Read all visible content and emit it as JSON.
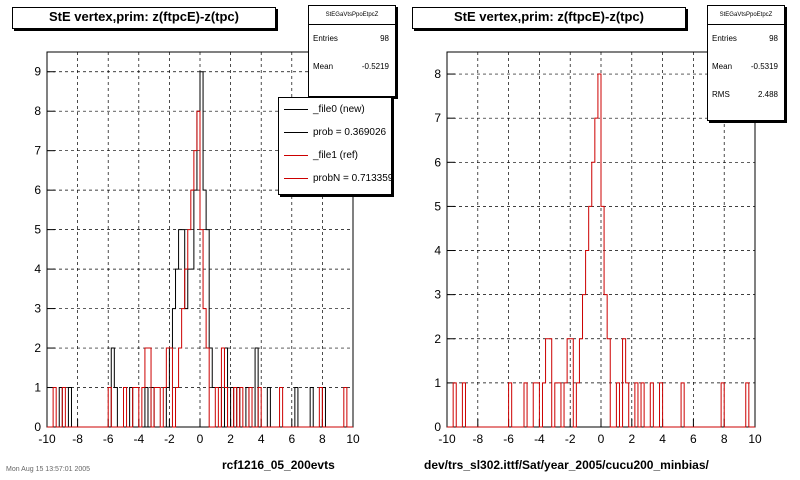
{
  "left_panel": {
    "title": "StE  vertex,prim: z(ftpcE)-z(tpc)",
    "stats": {
      "header": "StEGaVtsPpoEtpcZ",
      "entries_label": "Entries",
      "entries_value": "98",
      "mean_label": "Mean",
      "mean_value": "-0.5219"
    },
    "legend": {
      "items": [
        {
          "label": "_file0 (new)",
          "color": "#000000"
        },
        {
          "label": "prob = 0.369026",
          "color": "#000000"
        },
        {
          "label": "_file1 (ref)",
          "color": "#cc0000"
        },
        {
          "label": "probN = 0.713359",
          "color": "#cc0000"
        }
      ]
    },
    "caption": "rcf1216_05_200evts"
  },
  "right_panel": {
    "title": "StE  vertex,prim: z(ftpcE)-z(tpc)",
    "stats": {
      "header": "StEGaVtsPpoEtpcZ",
      "entries_label": "Entries",
      "entries_value": "98",
      "mean_label": "Mean",
      "mean_value": "-0.5319",
      "rms_label": "RMS",
      "rms_value": "2.488"
    },
    "caption": "dev/trs_sl302.ittf/Sat/year_2005/cucu200_minbias/"
  },
  "footnote": "Mon Aug 15 13:57:01 2005",
  "colors": {
    "new": "#000000",
    "ref": "#cc0000",
    "grid": "#000000"
  },
  "chart_data": [
    {
      "type": "histogram",
      "title": "StE  vertex,prim: z(ftpcE)-z(tpc)",
      "xlim": [
        -10,
        10
      ],
      "ylim": [
        0,
        9.5
      ],
      "x_ticks": [
        -10,
        -8,
        -6,
        -4,
        -2,
        0,
        2,
        4,
        6,
        8,
        10
      ],
      "y_ticks": [
        0,
        1,
        2,
        3,
        4,
        5,
        6,
        7,
        8,
        9
      ],
      "grid": true,
      "legend_position": "top-right",
      "bin_width": 0.2,
      "series": [
        {
          "name": "_file0 (new)",
          "color": "#000000",
          "bins": [
            [
              -9.2,
              1
            ],
            [
              -8.6,
              1
            ],
            [
              -5.8,
              2
            ],
            [
              -5.6,
              1
            ],
            [
              -4.6,
              1
            ],
            [
              -3.6,
              1
            ],
            [
              -3.2,
              1
            ],
            [
              -2.2,
              1
            ],
            [
              -2.0,
              2
            ],
            [
              -1.8,
              3
            ],
            [
              -1.6,
              4
            ],
            [
              -1.4,
              5
            ],
            [
              -1.2,
              5
            ],
            [
              -1.0,
              3
            ],
            [
              -0.8,
              4
            ],
            [
              -0.6,
              4
            ],
            [
              -0.4,
              6
            ],
            [
              -0.2,
              8
            ],
            [
              0.0,
              9
            ],
            [
              0.2,
              6
            ],
            [
              0.4,
              5
            ],
            [
              0.6,
              2
            ],
            [
              0.8,
              1
            ],
            [
              1.0,
              1
            ],
            [
              1.2,
              1
            ],
            [
              1.6,
              2
            ],
            [
              2.0,
              1
            ],
            [
              2.4,
              1
            ],
            [
              3.0,
              1
            ],
            [
              3.6,
              2
            ],
            [
              4.4,
              1
            ],
            [
              6.2,
              1
            ],
            [
              7.2,
              1
            ],
            [
              8.0,
              1
            ]
          ]
        },
        {
          "name": "_file1 (ref)",
          "color": "#cc0000",
          "bins": [
            [
              -9.6,
              1
            ],
            [
              -9.0,
              1
            ],
            [
              -6.0,
              1
            ],
            [
              -5.0,
              1
            ],
            [
              -4.4,
              1
            ],
            [
              -4.2,
              1
            ],
            [
              -3.8,
              1
            ],
            [
              -3.6,
              2
            ],
            [
              -3.4,
              2
            ],
            [
              -3.0,
              1
            ],
            [
              -2.8,
              1
            ],
            [
              -2.4,
              1
            ],
            [
              -2.2,
              2
            ],
            [
              -2.0,
              2
            ],
            [
              -1.6,
              1
            ],
            [
              -1.4,
              2
            ],
            [
              -1.2,
              3
            ],
            [
              -1.0,
              4
            ],
            [
              -0.8,
              5
            ],
            [
              -0.6,
              6
            ],
            [
              -0.4,
              7
            ],
            [
              -0.2,
              8
            ],
            [
              0.0,
              5
            ],
            [
              0.2,
              3
            ],
            [
              0.4,
              2
            ],
            [
              1.0,
              1
            ],
            [
              1.4,
              2
            ],
            [
              1.6,
              1
            ],
            [
              2.2,
              1
            ],
            [
              2.6,
              1
            ],
            [
              3.2,
              1
            ],
            [
              3.8,
              1
            ],
            [
              5.2,
              1
            ],
            [
              7.8,
              1
            ],
            [
              9.4,
              1
            ]
          ]
        }
      ]
    },
    {
      "type": "histogram",
      "title": "StE  vertex,prim: z(ftpcE)-z(tpc)",
      "xlim": [
        -10,
        10
      ],
      "ylim": [
        0,
        8.5
      ],
      "x_ticks": [
        -10,
        -8,
        -6,
        -4,
        -2,
        0,
        2,
        4,
        6,
        8,
        10
      ],
      "y_ticks": [
        0,
        1,
        2,
        3,
        4,
        5,
        6,
        7,
        8
      ],
      "grid": true,
      "bin_width": 0.2,
      "series": [
        {
          "name": "_file1 (ref)",
          "color": "#cc0000",
          "bins": [
            [
              -9.6,
              1
            ],
            [
              -9.0,
              1
            ],
            [
              -6.0,
              1
            ],
            [
              -5.0,
              1
            ],
            [
              -4.4,
              1
            ],
            [
              -4.2,
              1
            ],
            [
              -3.8,
              1
            ],
            [
              -3.6,
              2
            ],
            [
              -3.4,
              2
            ],
            [
              -3.0,
              1
            ],
            [
              -2.8,
              1
            ],
            [
              -2.4,
              1
            ],
            [
              -2.2,
              2
            ],
            [
              -2.0,
              2
            ],
            [
              -1.6,
              1
            ],
            [
              -1.4,
              2
            ],
            [
              -1.2,
              3
            ],
            [
              -1.0,
              4
            ],
            [
              -0.8,
              5
            ],
            [
              -0.6,
              6
            ],
            [
              -0.4,
              7
            ],
            [
              -0.2,
              8
            ],
            [
              0.0,
              5
            ],
            [
              0.2,
              3
            ],
            [
              0.4,
              2
            ],
            [
              1.0,
              1
            ],
            [
              1.4,
              2
            ],
            [
              1.6,
              1
            ],
            [
              2.2,
              1
            ],
            [
              2.6,
              1
            ],
            [
              3.2,
              1
            ],
            [
              3.8,
              1
            ],
            [
              5.2,
              1
            ],
            [
              7.8,
              1
            ],
            [
              9.4,
              1
            ]
          ]
        }
      ]
    }
  ]
}
